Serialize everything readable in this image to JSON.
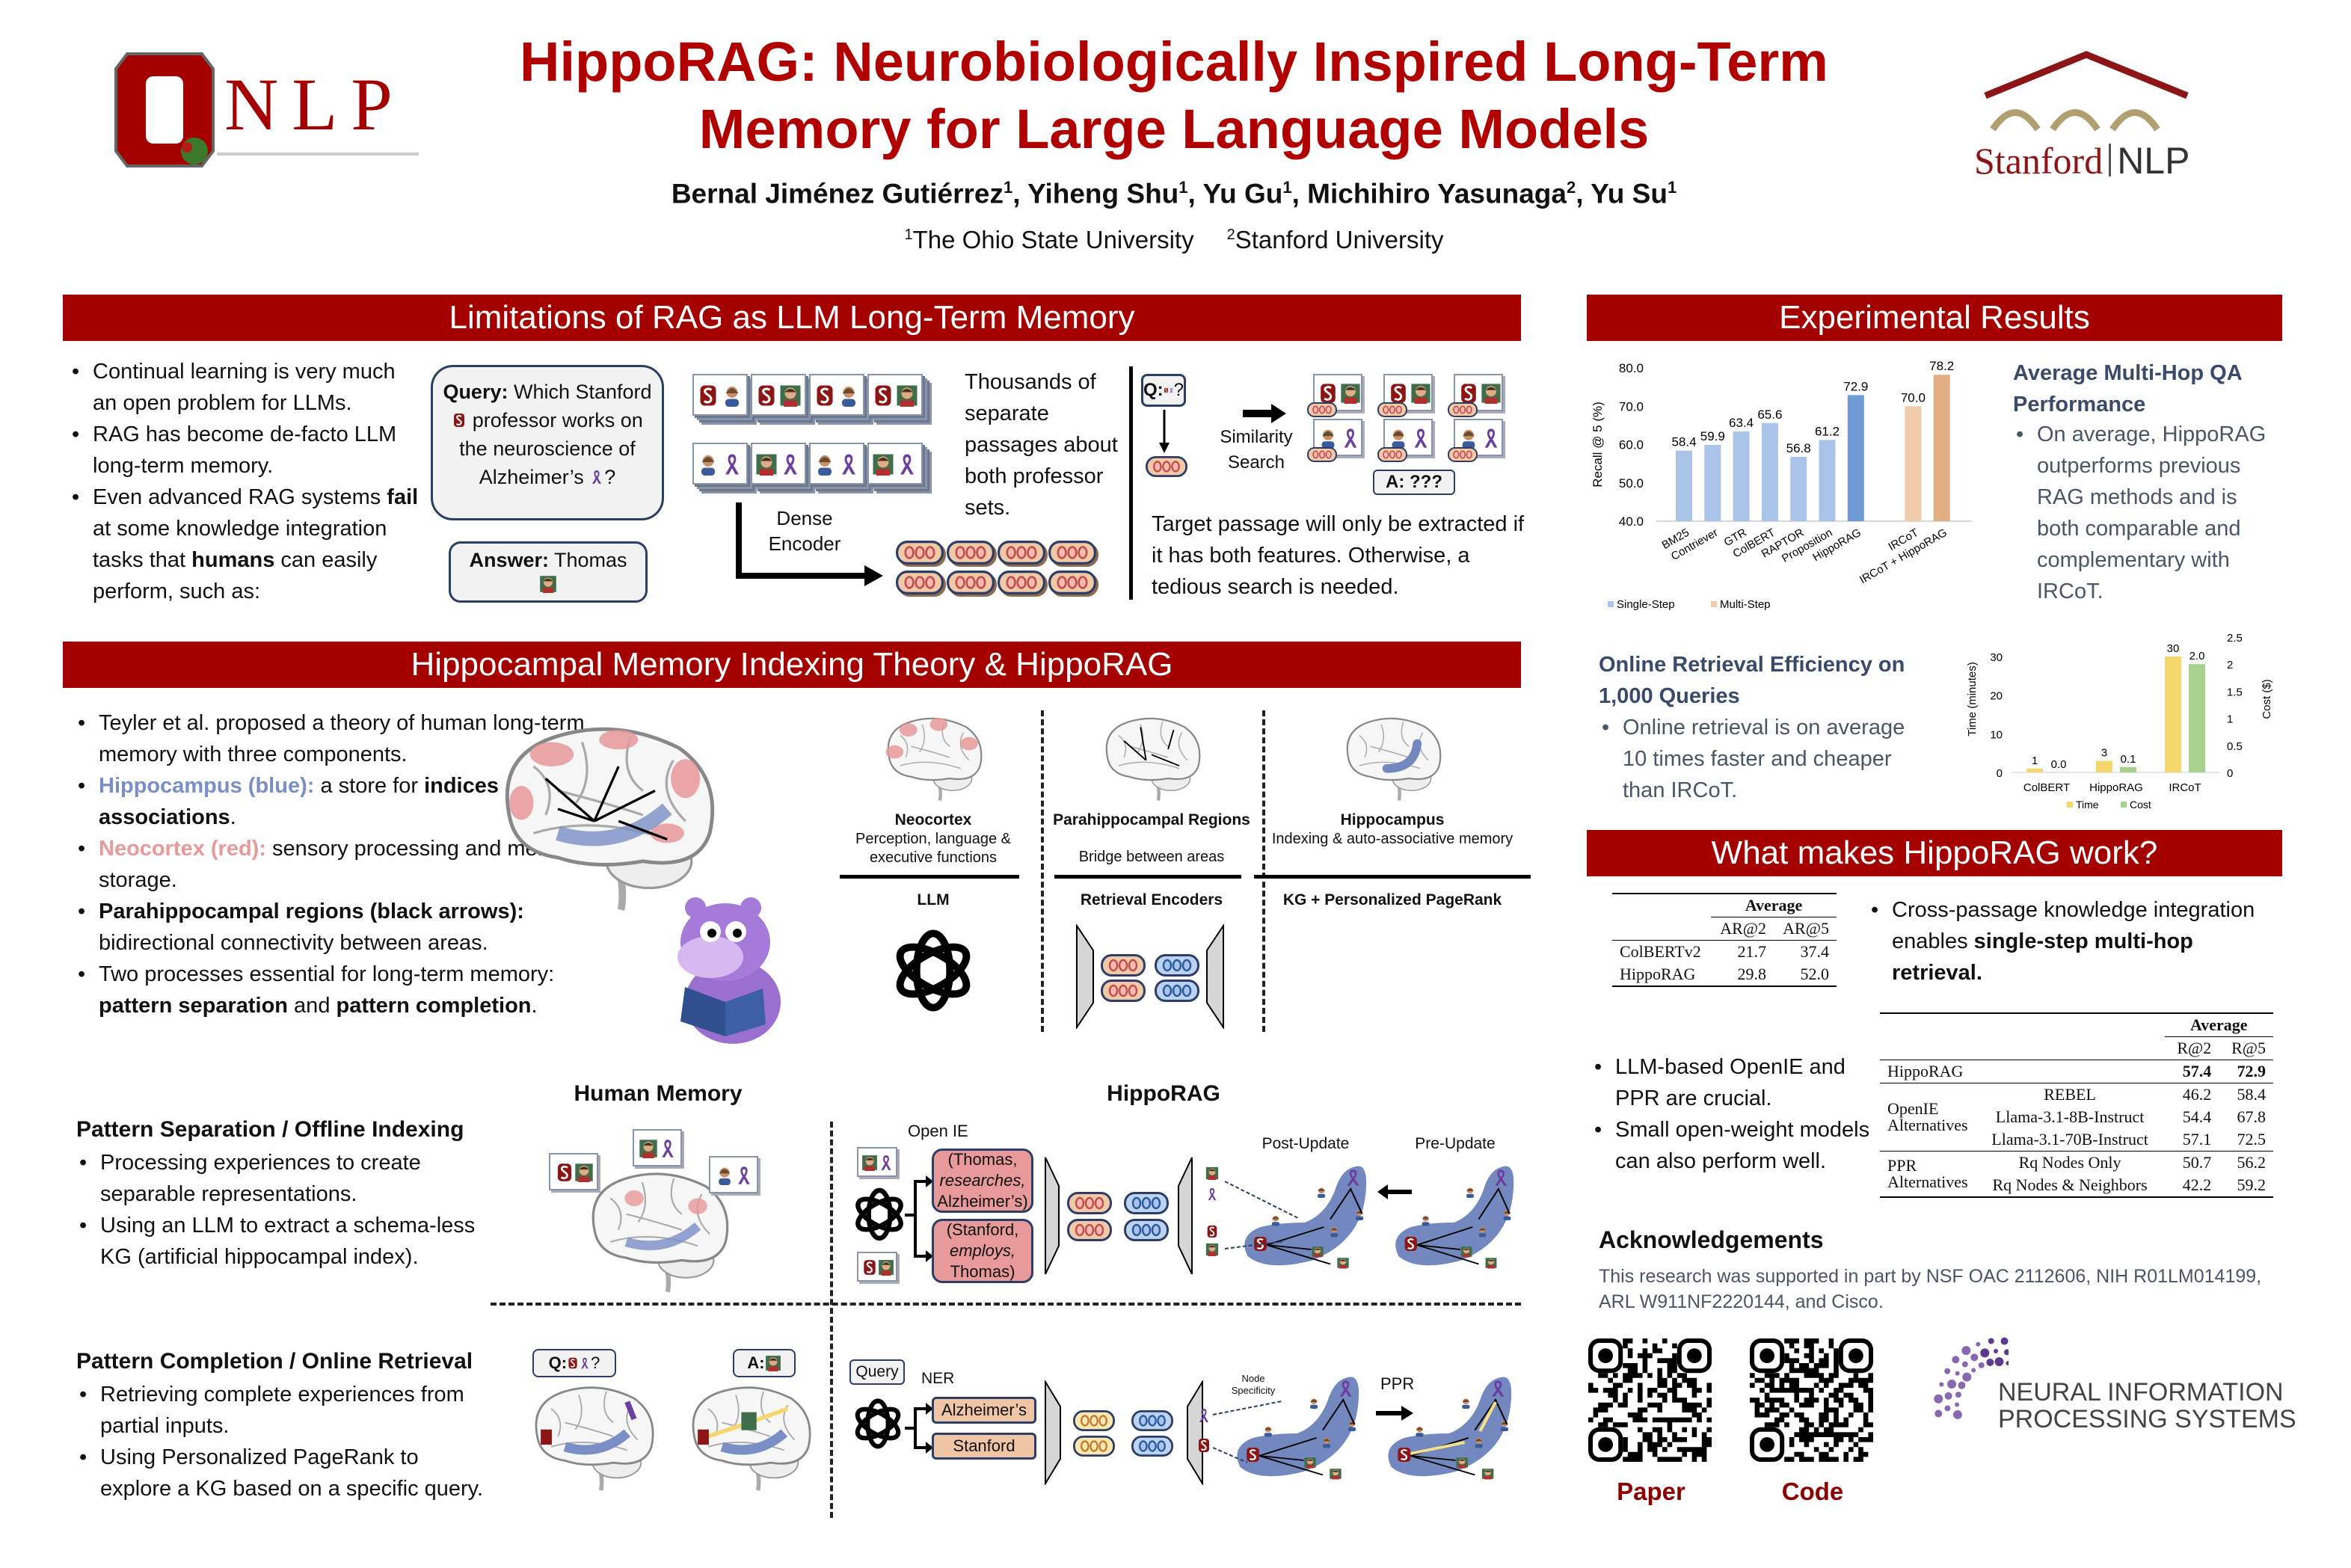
{
  "header": {
    "title_line1": "HippoRAG: Neurobiologically Inspired Long-Term",
    "title_line2": "Memory for Large Language Models",
    "authors": [
      {
        "name": "Bernal Jiménez Gutiérrez",
        "aff": "1"
      },
      {
        "name": "Yiheng Shu",
        "aff": "1"
      },
      {
        "name": "Yu Gu",
        "aff": "1"
      },
      {
        "name": "Michihiro Yasunaga",
        "aff": "2"
      },
      {
        "name": "Yu Su",
        "aff": "1"
      }
    ],
    "affiliations": [
      {
        "num": "1",
        "name": "The Ohio State University"
      },
      {
        "num": "2",
        "name": "Stanford University"
      }
    ],
    "logo_left_text": "NLP",
    "logo_right_stanford": "Stanford",
    "logo_right_nlp": "NLP"
  },
  "colors": {
    "accent": "#a50000",
    "single_step": "#a9c4e8",
    "hipporag_bar": "#6f9bd4",
    "multi_step_light": "#efcbaa",
    "multi_step": "#e3ae82",
    "time": "#f5d76e",
    "cost": "#a9d18e",
    "hippocampus": "#7b8fc7",
    "neocortex": "#e8999a"
  },
  "limitations": {
    "title": "Limitations of RAG as LLM Long-Term Memory",
    "bullets": [
      [
        {
          "t": "Continual learning is very much an open problem for LLMs."
        }
      ],
      [
        {
          "t": "RAG has become de-facto LLM long-term memory."
        }
      ],
      [
        {
          "t": "Even advanced RAG systems "
        },
        {
          "t": "fail",
          "b": true
        },
        {
          "t": " at some knowledge integration tasks that "
        },
        {
          "t": "humans",
          "b": true
        },
        {
          "t": " can easily perform, such as:"
        }
      ]
    ],
    "query_label": "Query:",
    "query_a": " Which Stanford",
    "query_b": "professor works on the neuroscience of Alzheimer’s",
    "query_end": "?",
    "answer_label": "Answer:",
    "answer_value": " Thomas",
    "passages_text": "Thousands of separate passages about both professor sets.",
    "encoder_label": "Dense Encoder",
    "q_label": "Q:",
    "q_end": "?",
    "similarity_label": "Similarity Search",
    "a_label": "A: ???",
    "target_text": "Target passage will only be extracted if it has both features. Otherwise, a tedious search is needed."
  },
  "theory": {
    "title": "Hippocampal Memory Indexing Theory & HippoRAG",
    "bullets": [
      [
        {
          "t": "Teyler et al. proposed a theory of human long-term memory with three components."
        }
      ],
      [
        {
          "t": "Hippocampus (blue):",
          "b": true,
          "c": "#7b8fc7"
        },
        {
          "t": " a store for "
        },
        {
          "t": "indices",
          "b": true
        },
        {
          "t": " and their "
        },
        {
          "t": "associations",
          "b": true
        },
        {
          "t": "."
        }
      ],
      [
        {
          "t": "Neocortex (red):",
          "b": true,
          "c": "#e8999a"
        },
        {
          "t": " sensory processing and memory storage."
        }
      ],
      [
        {
          "t": "Parahippocampal regions (black arrows):",
          "b": true
        },
        {
          "t": " bidirectional connectivity between areas."
        }
      ],
      [
        {
          "t": "Two processes essential for long-term memory: "
        },
        {
          "t": "pattern separation",
          "b": true
        },
        {
          "t": " and "
        },
        {
          "t": "pattern completion",
          "b": true
        },
        {
          "t": "."
        }
      ]
    ],
    "columns": [
      {
        "title": "Neocortex",
        "desc": "Perception, language & executive functions",
        "analog": "LLM"
      },
      {
        "title": "Parahippocampal Regions",
        "desc": "Bridge between areas",
        "analog": "Retrieval Encoders"
      },
      {
        "title": "Hippocampus",
        "desc": "Indexing & auto-associative memory",
        "analog": "KG + Personalized PageRank"
      }
    ],
    "human_memory_label": "Human Memory",
    "hipporag_label": "HippoRAG",
    "separation": {
      "title": "Pattern Separation / Offline Indexing",
      "bullets": [
        "Processing experiences to create separable representations.",
        "Using an LLM to extract a schema-less KG (artificial hippocampal index)."
      ]
    },
    "completion": {
      "title": "Pattern Completion / Online Retrieval",
      "bullets": [
        "Retrieving complete experiences from partial inputs.",
        "Using Personalized PageRank to explore a KG based on a specific query."
      ]
    },
    "openie_label": "Open IE",
    "triple1": {
      "s": "(Thomas,",
      "r": "researches,",
      "o": "Alzheimer’s)"
    },
    "triple2": {
      "s": "(Stanford,",
      "r": "employs,",
      "o": "Thomas)"
    },
    "post_update": "Post-Update",
    "pre_update": "Pre-Update",
    "query_label": "Query",
    "ner_label": "NER",
    "entity1": "Alzheimer’s",
    "entity2": "Stanford",
    "node_specificity": "Node Specificity",
    "ppr_label": "PPR",
    "q_label": "Q:",
    "q_end": "?",
    "a_label": "A:"
  },
  "results": {
    "title": "Experimental Results",
    "qa_heading": "Average Multi-Hop QA Performance",
    "qa_bullet": "On average, HippoRAG outperforms previous RAG methods and is both comparable and complementary with IRCoT.",
    "eff_heading": "Online Retrieval Efficiency on 1,000 Queries",
    "eff_bullet": "Online retrieval is on average 10 times faster and cheaper than IRCoT."
  },
  "chart_data": [
    {
      "type": "bar",
      "categories": [
        "BM25",
        "Contriever",
        "GTR",
        "ColBERT",
        "RAPTOR",
        "Proposition",
        "HippoRAG",
        "IRCoT",
        "IRCoT + HippoRAG"
      ],
      "values": [
        58.4,
        59.9,
        63.4,
        65.6,
        56.8,
        61.2,
        72.9,
        70.0,
        78.2
      ],
      "groups": [
        "Single-Step",
        "Single-Step",
        "Single-Step",
        "Single-Step",
        "Single-Step",
        "Single-Step",
        "Single-Step",
        "Multi-Step",
        "Multi-Step"
      ],
      "legend": [
        "Single-Step",
        "Multi-Step"
      ],
      "legend_placement": "bottom-left",
      "ylabel": "Recall @ 5 (%)",
      "ylim": [
        40,
        80
      ],
      "yticks": [
        "40.0",
        "50.0",
        "60.0",
        "70.0",
        "80.0"
      ],
      "grid": false
    },
    {
      "type": "bar",
      "categories": [
        "ColBERT",
        "HippoRAG",
        "IRCoT"
      ],
      "series": [
        {
          "name": "Time",
          "values": [
            1,
            3,
            30
          ],
          "labels": [
            "1",
            "3",
            "30"
          ],
          "axis": "left"
        },
        {
          "name": "Cost",
          "values": [
            0.0,
            0.1,
            2.0
          ],
          "labels": [
            "0.0",
            "0.1",
            "2.0"
          ],
          "axis": "right"
        }
      ],
      "ylabel": "Time (minutes)",
      "y2label": "Cost ($)",
      "ylim": [
        0,
        35
      ],
      "y2lim": [
        0,
        2.5
      ],
      "yticks": [
        "0",
        "10",
        "20",
        "30"
      ],
      "y2ticks": [
        "0",
        "0.5",
        "1",
        "1.5",
        "2",
        "2.5"
      ],
      "legend_placement": "bottom",
      "grid": false
    }
  ],
  "works": {
    "title": "What makes HippoRAG work?",
    "bullet1": [
      {
        "t": "Cross-passage knowledge integration enables "
      },
      {
        "t": "single-step multi-hop retrieval.",
        "b": true
      }
    ],
    "bullets2": [
      "LLM-based OpenIE and PPR are crucial.",
      "Small open-weight models can also perform well."
    ],
    "table1": {
      "group": "Average",
      "cols": [
        "AR@2",
        "AR@5"
      ],
      "rows": [
        [
          "ColBERTv2",
          "21.7",
          "37.4"
        ],
        [
          "HippoRAG",
          "29.8",
          "52.0"
        ]
      ]
    },
    "table2": {
      "group": "Average",
      "cols": [
        "R@2",
        "R@5"
      ],
      "main": [
        "HippoRAG",
        "57.4",
        "72.9"
      ],
      "openie_group": "OpenIE Alternatives",
      "openie_rows": [
        [
          "REBEL",
          "46.2",
          "58.4"
        ],
        [
          "Llama-3.1-8B-Instruct",
          "54.4",
          "67.8"
        ],
        [
          "Llama-3.1-70B-Instruct",
          "57.1",
          "72.5"
        ]
      ],
      "ppr_group": "PPR Alternatives",
      "ppr_rows": [
        [
          "Rq Nodes Only",
          "50.7",
          "56.2"
        ],
        [
          "Rq Nodes & Neighbors",
          "42.2",
          "59.2"
        ]
      ]
    }
  },
  "ack": {
    "title": "Acknowledgements",
    "text": "This research was supported in part by NSF OAC 2112606, NIH R01LM014199, ARL W911NF2220144, and Cisco.",
    "paper_label": "Paper",
    "code_label": "Code",
    "neurips_line1": "NEURAL INFORMATION",
    "neurips_line2": "PROCESSING SYSTEMS"
  }
}
